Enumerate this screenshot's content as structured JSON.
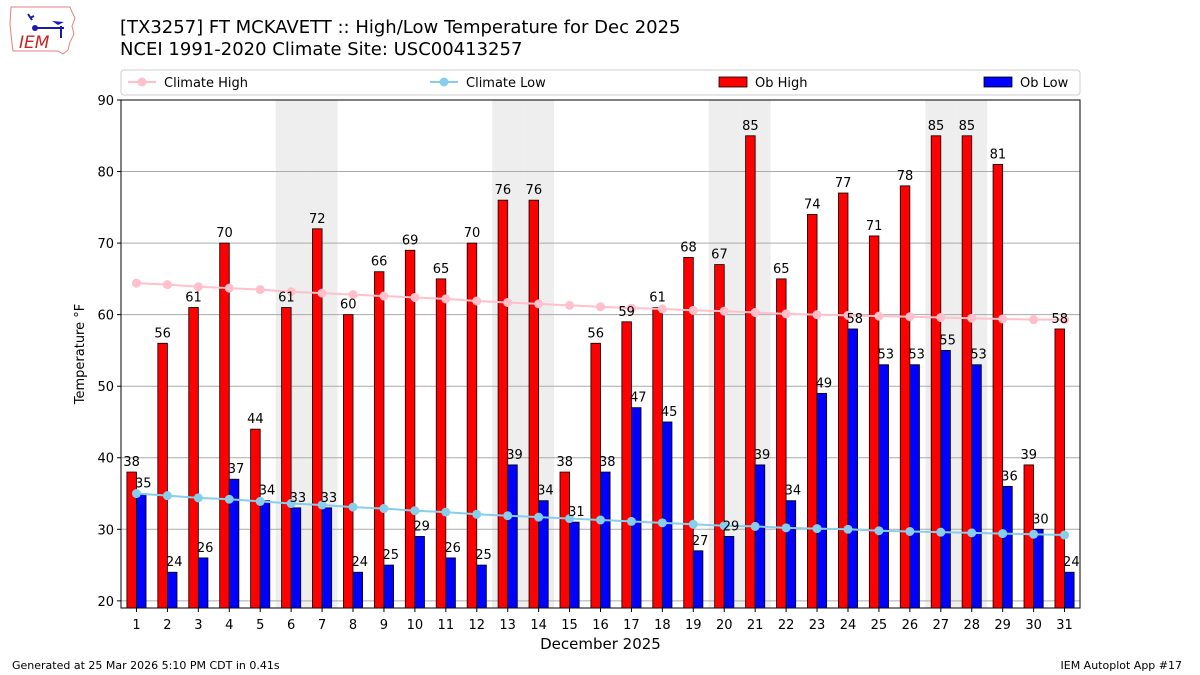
{
  "header": {
    "title_line1": "[TX3257] FT MCKAVETT :: High/Low Temperature for Dec 2025",
    "title_line2": "NCEI 1991-2020 Climate Site: USC00413257",
    "logo_text": "IEM"
  },
  "footer": {
    "generated": "Generated at 25 Mar 2026 5:10 PM CDT in 0.41s",
    "app": "IEM Autoplot App #17"
  },
  "colors": {
    "ob_high": "#ff0000",
    "ob_low": "#0000ff",
    "climate_high": "#ffc0cb",
    "climate_low": "#87ceeb",
    "weekend_shade": "#eeeeee",
    "grid": "#aaaaaa"
  },
  "chart_data": {
    "type": "bar",
    "title": "[TX3257] FT MCKAVETT :: High/Low Temperature for Dec 2025",
    "subtitle": "NCEI 1991-2020 Climate Site: USC00413257",
    "xlabel": "December 2025",
    "ylabel": "Temperature °F",
    "ylim": [
      19,
      90
    ],
    "yticks": [
      20,
      30,
      40,
      50,
      60,
      70,
      80,
      90
    ],
    "grid": true,
    "legend_position": "top",
    "categories": [
      "1",
      "2",
      "3",
      "4",
      "5",
      "6",
      "7",
      "8",
      "9",
      "10",
      "11",
      "12",
      "13",
      "14",
      "15",
      "16",
      "17",
      "18",
      "19",
      "20",
      "21",
      "22",
      "23",
      "24",
      "25",
      "26",
      "27",
      "28",
      "29",
      "30",
      "31"
    ],
    "weekend_days": [
      6,
      7,
      13,
      14,
      20,
      21,
      27,
      28
    ],
    "series": [
      {
        "name": "Ob High",
        "type": "bar",
        "values": [
          38,
          56,
          61,
          70,
          44,
          61,
          72,
          60,
          66,
          69,
          65,
          70,
          76,
          76,
          38,
          56,
          59,
          61,
          68,
          67,
          85,
          65,
          74,
          77,
          71,
          78,
          85,
          85,
          81,
          39,
          58
        ]
      },
      {
        "name": "Ob Low",
        "type": "bar",
        "values": [
          35,
          24,
          26,
          37,
          34,
          33,
          33,
          24,
          25,
          29,
          26,
          25,
          39,
          34,
          31,
          38,
          47,
          45,
          27,
          29,
          39,
          34,
          49,
          58,
          53,
          53,
          55,
          53,
          36,
          30,
          24
        ]
      },
      {
        "name": "Climate High",
        "type": "line",
        "values": [
          64.4,
          64.2,
          63.9,
          63.7,
          63.5,
          63.2,
          63.0,
          62.8,
          62.6,
          62.4,
          62.2,
          61.9,
          61.7,
          61.5,
          61.3,
          61.1,
          60.9,
          60.8,
          60.6,
          60.5,
          60.3,
          60.1,
          60.0,
          59.9,
          59.8,
          59.7,
          59.6,
          59.5,
          59.4,
          59.3,
          59.3
        ]
      },
      {
        "name": "Climate Low",
        "type": "line",
        "values": [
          35.0,
          34.7,
          34.4,
          34.2,
          33.9,
          33.6,
          33.4,
          33.1,
          32.9,
          32.6,
          32.4,
          32.1,
          31.9,
          31.7,
          31.5,
          31.3,
          31.1,
          30.9,
          30.7,
          30.5,
          30.4,
          30.2,
          30.1,
          30.0,
          29.8,
          29.7,
          29.6,
          29.5,
          29.4,
          29.3,
          29.2
        ]
      }
    ],
    "legend": [
      "Climate High",
      "Climate Low",
      "Ob High",
      "Ob Low"
    ]
  }
}
